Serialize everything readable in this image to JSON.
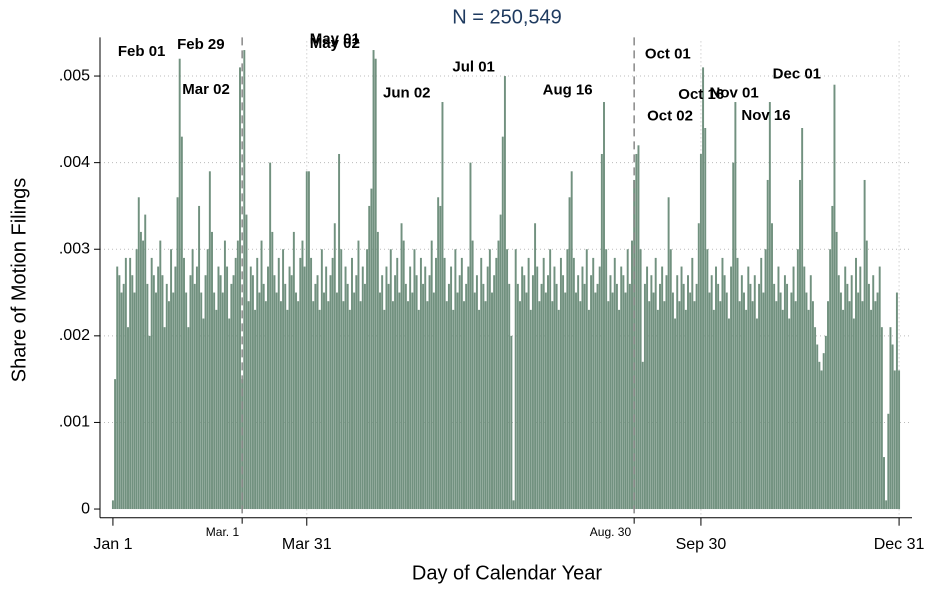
{
  "chart_data": {
    "type": "bar",
    "title": "N =   250,549",
    "x_label": "Day of Calendar Year",
    "y_label": "Share of Motion Filings",
    "color": "#71917f",
    "grid": true,
    "xlim": [
      -5,
      372
    ],
    "ylim": [
      -0.0001,
      0.0054
    ],
    "xticks": [
      {
        "value": 1,
        "label": "Jan 1"
      },
      {
        "value": 91,
        "label": "Mar 31"
      },
      {
        "value": 274,
        "label": "Sep 30"
      },
      {
        "value": 366,
        "label": "Dec 31"
      }
    ],
    "yticks": [
      0,
      {
        "value": 0.001,
        "label": ".001"
      },
      {
        "value": 0.002,
        "label": ".002"
      },
      {
        "value": 0.003,
        "label": ".003"
      },
      {
        "value": 0.004,
        "label": ".004"
      },
      {
        "value": 0.005,
        "label": ".005"
      }
    ],
    "reference_lines": [
      {
        "value": 61,
        "label": "Mar. 1"
      },
      {
        "value": 243,
        "label": "Aug. 30"
      }
    ],
    "annotations": [
      {
        "text": "Feb 01",
        "x": 3.3,
        "y": 0.00528
      },
      {
        "text": "Feb 29",
        "x": 30.8,
        "y": 0.00536
      },
      {
        "text": "Mar 02",
        "x": 33.2,
        "y": 0.00484
      },
      {
        "text": "May 01",
        "x": 92.4,
        "y": 0.00542
      },
      {
        "text": "May 02",
        "x": 92.4,
        "y": 0.00537
      },
      {
        "text": "Jun 02",
        "x": 126.4,
        "y": 0.0048
      },
      {
        "text": "Jul 01",
        "x": 158.6,
        "y": 0.0051
      },
      {
        "text": "Aug 16",
        "x": 200.5,
        "y": 0.00483
      },
      {
        "text": "Oct 01",
        "x": 248,
        "y": 0.00525
      },
      {
        "text": "Oct 02",
        "x": 249,
        "y": 0.00453
      },
      {
        "text": "Oct 16",
        "x": 263.5,
        "y": 0.00478
      },
      {
        "text": "Nov 01",
        "x": 278,
        "y": 0.0048
      },
      {
        "text": "Nov 16",
        "x": 292.8,
        "y": 0.00454
      },
      {
        "text": "Dec 01",
        "x": 307.3,
        "y": 0.00502
      }
    ],
    "x": [
      1,
      2,
      3,
      4,
      5,
      6,
      7,
      8,
      9,
      10,
      11,
      12,
      13,
      14,
      15,
      16,
      17,
      18,
      19,
      20,
      21,
      22,
      23,
      24,
      25,
      26,
      27,
      28,
      29,
      30,
      31,
      32,
      33,
      34,
      35,
      36,
      37,
      38,
      39,
      40,
      41,
      42,
      43,
      44,
      45,
      46,
      47,
      48,
      49,
      50,
      51,
      52,
      53,
      54,
      55,
      56,
      57,
      58,
      59,
      60,
      61,
      62,
      63,
      64,
      65,
      66,
      67,
      68,
      69,
      70,
      71,
      72,
      73,
      74,
      75,
      76,
      77,
      78,
      79,
      80,
      81,
      82,
      83,
      84,
      85,
      86,
      87,
      88,
      89,
      90,
      91,
      92,
      93,
      94,
      95,
      96,
      97,
      98,
      99,
      100,
      101,
      102,
      103,
      104,
      105,
      106,
      107,
      108,
      109,
      110,
      111,
      112,
      113,
      114,
      115,
      116,
      117,
      118,
      119,
      120,
      121,
      122,
      123,
      124,
      125,
      126,
      127,
      128,
      129,
      130,
      131,
      132,
      133,
      134,
      135,
      136,
      137,
      138,
      139,
      140,
      141,
      142,
      143,
      144,
      145,
      146,
      147,
      148,
      149,
      150,
      151,
      152,
      153,
      154,
      155,
      156,
      157,
      158,
      159,
      160,
      161,
      162,
      163,
      164,
      165,
      166,
      167,
      168,
      169,
      170,
      171,
      172,
      173,
      174,
      175,
      176,
      177,
      178,
      179,
      180,
      181,
      182,
      183,
      184,
      185,
      186,
      187,
      188,
      189,
      190,
      191,
      192,
      193,
      194,
      195,
      196,
      197,
      198,
      199,
      200,
      201,
      202,
      203,
      204,
      205,
      206,
      207,
      208,
      209,
      210,
      211,
      212,
      213,
      214,
      215,
      216,
      217,
      218,
      219,
      220,
      221,
      222,
      223,
      224,
      225,
      226,
      227,
      228,
      229,
      230,
      231,
      232,
      233,
      234,
      235,
      236,
      237,
      238,
      239,
      240,
      241,
      242,
      243,
      244,
      245,
      246,
      247,
      248,
      249,
      250,
      251,
      252,
      253,
      254,
      255,
      256,
      257,
      258,
      259,
      260,
      261,
      262,
      263,
      264,
      265,
      266,
      267,
      268,
      269,
      270,
      271,
      272,
      273,
      274,
      275,
      276,
      277,
      278,
      279,
      280,
      281,
      282,
      283,
      284,
      285,
      286,
      287,
      288,
      289,
      290,
      291,
      292,
      293,
      294,
      295,
      296,
      297,
      298,
      299,
      300,
      301,
      302,
      303,
      304,
      305,
      306,
      307,
      308,
      309,
      310,
      311,
      312,
      313,
      314,
      315,
      316,
      317,
      318,
      319,
      320,
      321,
      322,
      323,
      324,
      325,
      326,
      327,
      328,
      329,
      330,
      331,
      332,
      333,
      334,
      335,
      336,
      337,
      338,
      339,
      340,
      341,
      342,
      343,
      344,
      345,
      346,
      347,
      348,
      349,
      350,
      351,
      352,
      353,
      354,
      355,
      356,
      357,
      358,
      359,
      360,
      361,
      362,
      363,
      364,
      365,
      366
    ],
    "values": [
      0.0001,
      0.0015,
      0.0028,
      0.0027,
      0.0025,
      0.0026,
      0.0029,
      0.0021,
      0.0029,
      0.0027,
      0.0025,
      0.003,
      0.0036,
      0.0032,
      0.0031,
      0.0034,
      0.0026,
      0.002,
      0.0029,
      0.0027,
      0.0025,
      0.0028,
      0.0031,
      0.0027,
      0.0021,
      0.0026,
      0.0024,
      0.003,
      0.0025,
      0.0028,
      0.0036,
      0.0052,
      0.0043,
      0.0029,
      0.0025,
      0.0021,
      0.0027,
      0.003,
      0.0026,
      0.0028,
      0.0035,
      0.0025,
      0.0022,
      0.0027,
      0.003,
      0.0039,
      0.0032,
      0.0025,
      0.0023,
      0.0028,
      0.0027,
      0.0025,
      0.0031,
      0.0028,
      0.0022,
      0.0026,
      0.0027,
      0.0029,
      0.0031,
      0.0051,
      0.0015,
      0.0053,
      0.0034,
      0.0024,
      0.0028,
      0.0027,
      0.0023,
      0.0029,
      0.0025,
      0.0031,
      0.0026,
      0.0024,
      0.0028,
      0.004,
      0.0032,
      0.0027,
      0.0025,
      0.0029,
      0.0024,
      0.003,
      0.0026,
      0.0023,
      0.0028,
      0.0027,
      0.0032,
      0.0025,
      0.0024,
      0.0029,
      0.0031,
      0.0028,
      0.0039,
      0.0039,
      0.0029,
      0.0024,
      0.0026,
      0.0027,
      0.0023,
      0.003,
      0.0025,
      0.0028,
      0.0024,
      0.0027,
      0.0029,
      0.0033,
      0.0025,
      0.0041,
      0.003,
      0.0024,
      0.0028,
      0.0026,
      0.0023,
      0.0029,
      0.0025,
      0.0027,
      0.0031,
      0.0024,
      0.0028,
      0.0026,
      0.003,
      0.0035,
      0.0037,
      0.0053,
      0.0052,
      0.0032,
      0.0025,
      0.0027,
      0.0023,
      0.0028,
      0.0026,
      0.003,
      0.0024,
      0.0027,
      0.0029,
      0.0025,
      0.0033,
      0.0031,
      0.0026,
      0.0024,
      0.0028,
      0.0025,
      0.003,
      0.0027,
      0.0023,
      0.0029,
      0.0026,
      0.0028,
      0.0024,
      0.0027,
      0.0031,
      0.0025,
      0.0029,
      0.0036,
      0.0035,
      0.0047,
      0.0029,
      0.0024,
      0.0026,
      0.0028,
      0.0023,
      0.003,
      0.0025,
      0.0027,
      0.0029,
      0.0024,
      0.0026,
      0.0028,
      0.004,
      0.0031,
      0.0025,
      0.0027,
      0.0023,
      0.0029,
      0.0026,
      0.0024,
      0.0028,
      0.003,
      0.0025,
      0.0027,
      0.0029,
      0.0031,
      0.0034,
      0.0043,
      0.005,
      0.003,
      0.0026,
      0.002,
      0.0001,
      0.003,
      0.0026,
      0.0024,
      0.0028,
      0.0027,
      0.0025,
      0.0029,
      0.0023,
      0.0027,
      0.0033,
      0.0028,
      0.0024,
      0.0026,
      0.0029,
      0.0025,
      0.0027,
      0.003,
      0.0024,
      0.0028,
      0.0026,
      0.0023,
      0.0029,
      0.0027,
      0.0025,
      0.003,
      0.0036,
      0.0039,
      0.0029,
      0.0025,
      0.0027,
      0.0024,
      0.0028,
      0.0026,
      0.003,
      0.0023,
      0.0027,
      0.0029,
      0.0025,
      0.0026,
      0.0028,
      0.0041,
      0.0047,
      0.003,
      0.0024,
      0.0027,
      0.0025,
      0.0029,
      0.0026,
      0.0023,
      0.0028,
      0.0027,
      0.0025,
      0.003,
      0.0026,
      0.0031,
      0.0038,
      0.0041,
      0.0042,
      0.003,
      0.0017,
      0.0026,
      0.0028,
      0.0024,
      0.0027,
      0.0025,
      0.0029,
      0.0023,
      0.0026,
      0.0028,
      0.0024,
      0.0027,
      0.0036,
      0.003,
      0.0025,
      0.0022,
      0.0027,
      0.0024,
      0.0028,
      0.0026,
      0.0023,
      0.0027,
      0.0025,
      0.0029,
      0.0024,
      0.0026,
      0.0033,
      0.0041,
      0.0051,
      0.0044,
      0.003,
      0.0025,
      0.0027,
      0.0023,
      0.0028,
      0.0026,
      0.0024,
      0.0029,
      0.0027,
      0.0025,
      0.0022,
      0.0028,
      0.004,
      0.0047,
      0.0029,
      0.0024,
      0.0027,
      0.0025,
      0.0023,
      0.0028,
      0.0026,
      0.0024,
      0.0027,
      0.0022,
      0.0026,
      0.0029,
      0.0025,
      0.003,
      0.0038,
      0.0047,
      0.0033,
      0.0026,
      0.0024,
      0.0028,
      0.0025,
      0.0023,
      0.0027,
      0.0026,
      0.0022,
      0.0025,
      0.0028,
      0.0024,
      0.003,
      0.0038,
      0.0044,
      0.0028,
      0.0025,
      0.0023,
      0.0027,
      0.0024,
      0.0021,
      0.0019,
      0.0017,
      0.0016,
      0.0018,
      0.002,
      0.0024,
      0.003,
      0.0035,
      0.0049,
      0.0032,
      0.0027,
      0.0025,
      0.0023,
      0.0028,
      0.0026,
      0.0024,
      0.0027,
      0.0022,
      0.0029,
      0.0025,
      0.0028,
      0.0024,
      0.0038,
      0.0031,
      0.0026,
      0.0023,
      0.0027,
      0.0024,
      0.0025,
      0.0028,
      0.0021,
      0.0006,
      0.0001,
      0.0011,
      0.0021,
      0.0019,
      0.0016,
      0.0025,
      0.0016
    ]
  }
}
